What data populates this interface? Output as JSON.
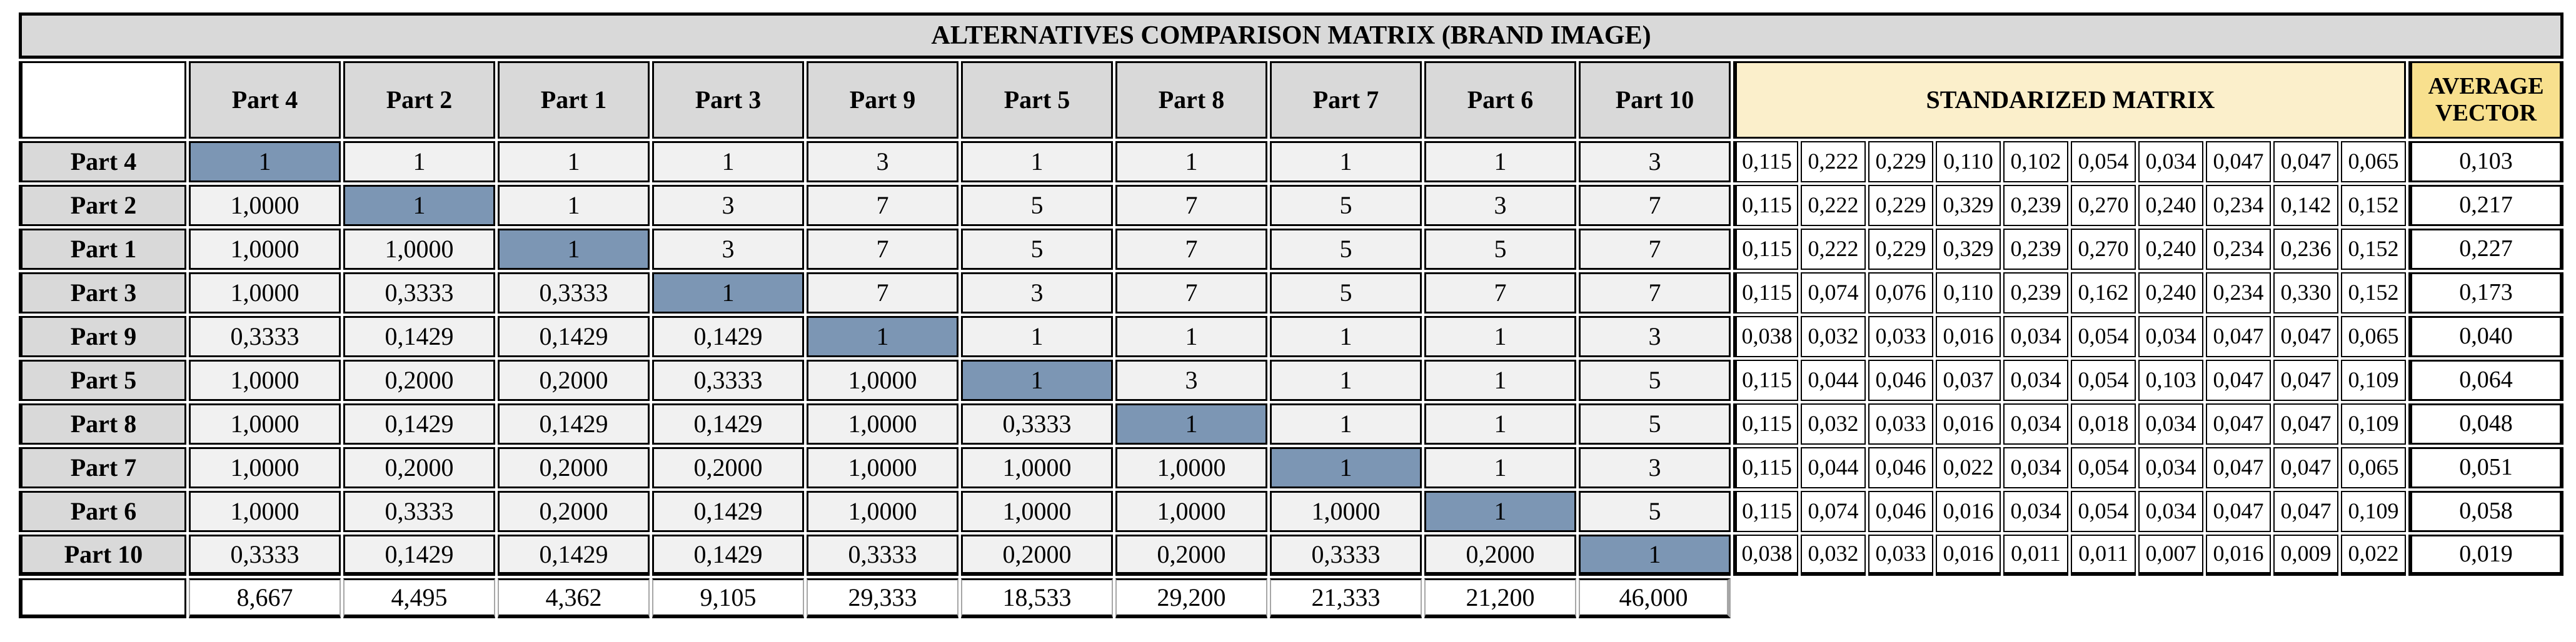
{
  "chart_data": {
    "type": "table",
    "title": "ALTERNATIVES COMPARISON MATRIX (BRAND IMAGE)",
    "section_headers": {
      "standardized": "STANDARIZED MATRIX",
      "average": "AVERAGE VECTOR"
    },
    "column_headers": [
      "Part 4",
      "Part 2",
      "Part 1",
      "Part 3",
      "Part 9",
      "Part 5",
      "Part 8",
      "Part 7",
      "Part 6",
      "Part 10"
    ],
    "rows": [
      {
        "label": "Part 4",
        "comparison": [
          "1",
          "1",
          "1",
          "1",
          "3",
          "1",
          "1",
          "1",
          "1",
          "3"
        ],
        "standardized": [
          "0,115",
          "0,222",
          "0,229",
          "0,110",
          "0,102",
          "0,054",
          "0,034",
          "0,047",
          "0,047",
          "0,065"
        ],
        "average": "0,103"
      },
      {
        "label": "Part 2",
        "comparison": [
          "1,0000",
          "1",
          "1",
          "3",
          "7",
          "5",
          "7",
          "5",
          "3",
          "7"
        ],
        "standardized": [
          "0,115",
          "0,222",
          "0,229",
          "0,329",
          "0,239",
          "0,270",
          "0,240",
          "0,234",
          "0,142",
          "0,152"
        ],
        "average": "0,217"
      },
      {
        "label": "Part 1",
        "comparison": [
          "1,0000",
          "1,0000",
          "1",
          "3",
          "7",
          "5",
          "7",
          "5",
          "5",
          "7"
        ],
        "standardized": [
          "0,115",
          "0,222",
          "0,229",
          "0,329",
          "0,239",
          "0,270",
          "0,240",
          "0,234",
          "0,236",
          "0,152"
        ],
        "average": "0,227"
      },
      {
        "label": "Part 3",
        "comparison": [
          "1,0000",
          "0,3333",
          "0,3333",
          "1",
          "7",
          "3",
          "7",
          "5",
          "7",
          "7"
        ],
        "standardized": [
          "0,115",
          "0,074",
          "0,076",
          "0,110",
          "0,239",
          "0,162",
          "0,240",
          "0,234",
          "0,330",
          "0,152"
        ],
        "average": "0,173"
      },
      {
        "label": "Part 9",
        "comparison": [
          "0,3333",
          "0,1429",
          "0,1429",
          "0,1429",
          "1",
          "1",
          "1",
          "1",
          "1",
          "3"
        ],
        "standardized": [
          "0,038",
          "0,032",
          "0,033",
          "0,016",
          "0,034",
          "0,054",
          "0,034",
          "0,047",
          "0,047",
          "0,065"
        ],
        "average": "0,040"
      },
      {
        "label": "Part 5",
        "comparison": [
          "1,0000",
          "0,2000",
          "0,2000",
          "0,3333",
          "1,0000",
          "1",
          "3",
          "1",
          "1",
          "5"
        ],
        "standardized": [
          "0,115",
          "0,044",
          "0,046",
          "0,037",
          "0,034",
          "0,054",
          "0,103",
          "0,047",
          "0,047",
          "0,109"
        ],
        "average": "0,064"
      },
      {
        "label": "Part 8",
        "comparison": [
          "1,0000",
          "0,1429",
          "0,1429",
          "0,1429",
          "1,0000",
          "0,3333",
          "1",
          "1",
          "1",
          "5"
        ],
        "standardized": [
          "0,115",
          "0,032",
          "0,033",
          "0,016",
          "0,034",
          "0,018",
          "0,034",
          "0,047",
          "0,047",
          "0,109"
        ],
        "average": "0,048"
      },
      {
        "label": "Part 7",
        "comparison": [
          "1,0000",
          "0,2000",
          "0,2000",
          "0,2000",
          "1,0000",
          "1,0000",
          "1,0000",
          "1",
          "1",
          "3"
        ],
        "standardized": [
          "0,115",
          "0,044",
          "0,046",
          "0,022",
          "0,034",
          "0,054",
          "0,034",
          "0,047",
          "0,047",
          "0,065"
        ],
        "average": "0,051"
      },
      {
        "label": "Part 6",
        "comparison": [
          "1,0000",
          "0,3333",
          "0,2000",
          "0,1429",
          "1,0000",
          "1,0000",
          "1,0000",
          "1,0000",
          "1",
          "5"
        ],
        "standardized": [
          "0,115",
          "0,074",
          "0,046",
          "0,016",
          "0,034",
          "0,054",
          "0,034",
          "0,047",
          "0,047",
          "0,109"
        ],
        "average": "0,058"
      },
      {
        "label": "Part 10",
        "comparison": [
          "0,3333",
          "0,1429",
          "0,1429",
          "0,1429",
          "0,3333",
          "0,2000",
          "0,2000",
          "0,3333",
          "0,2000",
          "1"
        ],
        "standardized": [
          "0,038",
          "0,032",
          "0,033",
          "0,016",
          "0,011",
          "0,011",
          "0,007",
          "0,016",
          "0,009",
          "0,022"
        ],
        "average": "0,019"
      }
    ],
    "column_sums": [
      "8,667",
      "4,495",
      "4,362",
      "9,105",
      "29,333",
      "18,533",
      "29,200",
      "21,333",
      "21,200",
      "46,000"
    ],
    "layout_hints": {
      "diagonal_highlighted": true,
      "decimal_separator": "comma"
    }
  },
  "colors": {
    "header_gray": "#D9D9D9",
    "cell_gray": "#F1F1F1",
    "diagonal_blue": "#7C96B4",
    "standardized_cream": "#FBEFCB",
    "average_gold": "#F8E08E",
    "border_black": "#000000",
    "sum_separator_gray": "#A6A6A6"
  }
}
